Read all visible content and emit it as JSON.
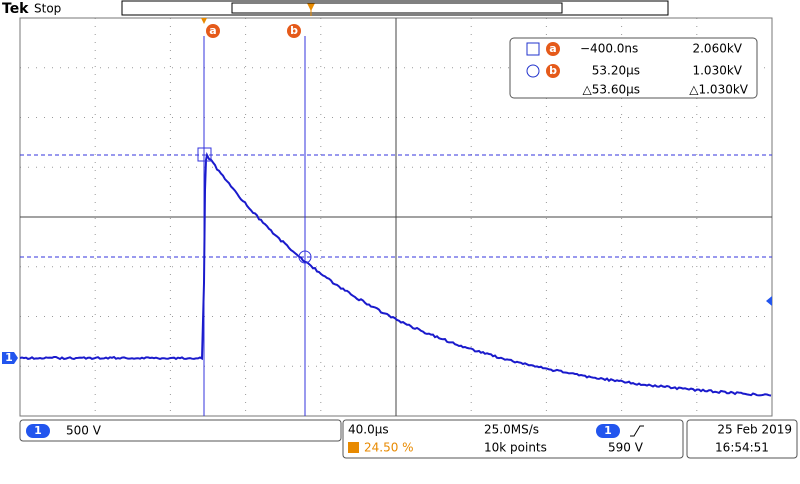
{
  "header": {
    "brand": "Tek",
    "status": "Stop"
  },
  "cursors": {
    "a": {
      "label": "a",
      "time": "−400.0ns",
      "voltage": "2.060kV"
    },
    "b": {
      "label": "b",
      "time": "53.20µs",
      "voltage": "1.030kV"
    },
    "delta": {
      "time": "△53.60µs",
      "voltage": "△1.030kV"
    }
  },
  "channel": {
    "number": "1",
    "scale": "500 V"
  },
  "timebase": {
    "scale": "40.0µs",
    "sample_rate": "25.0MS/s",
    "trigger_position": "24.50 %",
    "record_length": "10k points",
    "trigger_channel": "1",
    "trigger_level": "590 V"
  },
  "datetime": {
    "date": "25 Feb 2019",
    "time": "16:54:51"
  }
}
